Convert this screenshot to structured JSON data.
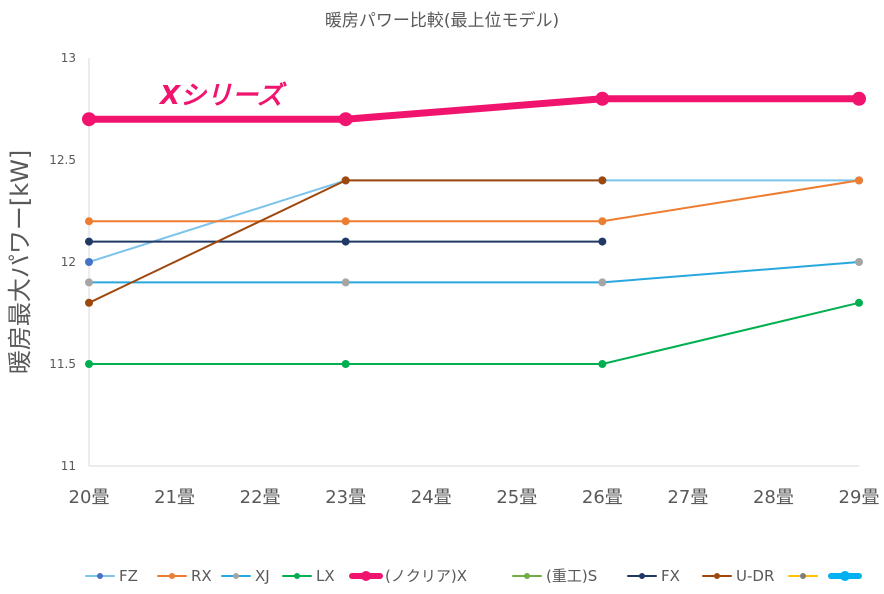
{
  "chart_data": {
    "type": "line",
    "title": "暖房パワー比較(最上位モデル)",
    "ylabel": "暖房最大パワー[kW]",
    "xlabel": "",
    "categories": [
      "20畳",
      "21畳",
      "22畳",
      "23畳",
      "24畳",
      "25畳",
      "26畳",
      "27畳",
      "28畳",
      "29畳"
    ],
    "ylim": [
      11,
      13
    ],
    "yticks": [
      "11",
      "11.5",
      "12",
      "12.5",
      "13"
    ],
    "grid": false,
    "legend_position": "bottom",
    "annotation": "Xシリーズ",
    "series": [
      {
        "name": "FZ",
        "color": "#4472C4",
        "line_color": "#7CC4EC",
        "values": [
          12.0,
          null,
          null,
          12.4,
          null,
          null,
          12.4,
          null,
          null,
          12.4
        ],
        "width": "thin"
      },
      {
        "name": "RX",
        "color": "#ED7D31",
        "line_color": "#ED7D31",
        "values": [
          12.2,
          null,
          null,
          12.2,
          null,
          null,
          12.2,
          null,
          null,
          12.4
        ],
        "width": "thin"
      },
      {
        "name": "XJ",
        "color": "#A5A5A5",
        "line_color": "#29A8E0",
        "values": [
          11.9,
          null,
          null,
          11.9,
          null,
          null,
          11.9,
          null,
          null,
          12.0
        ],
        "width": "thin"
      },
      {
        "name": "LX",
        "color": "#00B050",
        "line_color": "#00B050",
        "values": [
          11.5,
          null,
          null,
          11.5,
          null,
          null,
          11.5,
          null,
          null,
          11.8
        ],
        "width": "thin"
      },
      {
        "name": "(ノクリア)X",
        "color": "#F0146E",
        "line_color": "#F0146E",
        "values": [
          12.7,
          null,
          null,
          12.7,
          null,
          null,
          12.8,
          null,
          null,
          12.8
        ],
        "width": "thick"
      },
      {
        "name": "(重工)S",
        "color": "#70AD47",
        "line_color": "#70AD47",
        "values": [
          null,
          null,
          null,
          null,
          null,
          null,
          null,
          null,
          null,
          null
        ],
        "width": "thin"
      },
      {
        "name": "FX",
        "color": "#1F3864",
        "line_color": "#1F3864",
        "values": [
          12.1,
          null,
          null,
          12.1,
          null,
          null,
          12.1,
          null,
          null,
          null
        ],
        "width": "thin"
      },
      {
        "name": "U-DR",
        "color": "#9E480E",
        "line_color": "#9E480E",
        "values": [
          11.8,
          null,
          null,
          12.4,
          null,
          null,
          12.4,
          null,
          null,
          null
        ],
        "width": "thin"
      },
      {
        "name": "",
        "color": "#7F7F7F",
        "line_color": "#FFC000",
        "values": [
          null,
          null,
          null,
          null,
          null,
          null,
          null,
          null,
          null,
          null
        ],
        "width": "thin"
      },
      {
        "name": "",
        "color": "#00B0F0",
        "line_color": "#00B0F0",
        "values": [
          null,
          null,
          null,
          null,
          null,
          null,
          null,
          null,
          null,
          null
        ],
        "width": "thick"
      }
    ]
  }
}
